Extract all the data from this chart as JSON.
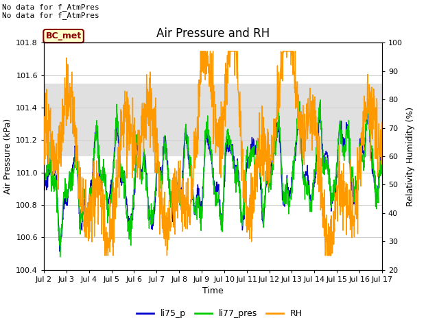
{
  "title": "Air Pressure and RH",
  "xlabel": "Time",
  "ylabel_left": "Air Pressure (kPa)",
  "ylabel_right": "Relativity Humidity (%)",
  "ylim_left": [
    100.4,
    101.8
  ],
  "ylim_right": [
    20,
    100
  ],
  "yticks_left": [
    100.4,
    100.6,
    100.8,
    101.0,
    101.2,
    101.4,
    101.6,
    101.8
  ],
  "yticks_right": [
    20,
    30,
    40,
    50,
    60,
    70,
    80,
    90,
    100
  ],
  "xtick_labels": [
    "Jul 2",
    "Jul 3",
    "Jul 4",
    "Jul 5",
    "Jul 6",
    "Jul 7",
    "Jul 8",
    "Jul 9",
    "Jul 10",
    "Jul 11",
    "Jul 12",
    "Jul 13",
    "Jul 14",
    "Jul 15",
    "Jul 16",
    "Jul 17"
  ],
  "annotation_text": "No data for f_AtmPres\nNo data for f_AtmPres",
  "box_label": "BC_met",
  "box_facecolor": "#ffffcc",
  "box_edgecolor": "#8b0000",
  "box_textcolor": "#8b0000",
  "line_colors": {
    "li75_p": "#0000cc",
    "li77_pres": "#00cc00",
    "RH": "#ff9900"
  },
  "legend_labels": [
    "li75_p",
    "li77_pres",
    "RH"
  ],
  "shaded_region": [
    101.1,
    101.55
  ],
  "shaded_color": "#e0e0e0",
  "background_color": "#ffffff",
  "grid_color": "#cccccc",
  "title_fontsize": 12,
  "label_fontsize": 9,
  "tick_fontsize": 8,
  "annotation_fontsize": 8
}
